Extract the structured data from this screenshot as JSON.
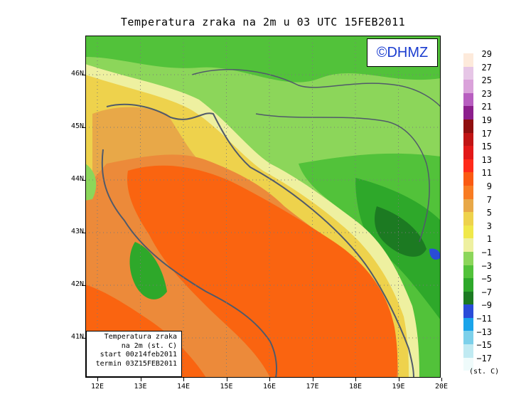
{
  "title": "Temperatura zraka na 2m u 03 UTC 15FEB2011",
  "logo": "©DHMZ",
  "map": {
    "lat_labels": [
      "46N",
      "45N",
      "44N",
      "43N",
      "42N",
      "41N"
    ],
    "lon_labels": [
      "12E",
      "13E",
      "14E",
      "15E",
      "16E",
      "17E",
      "18E",
      "19E",
      "20E"
    ],
    "colors": {
      "sea_warm": "#fa6410",
      "coast_orange": "#ec8a3a",
      "amber": "#e8a848",
      "yellow": "#eed24c",
      "pale_yellow": "#eef0a0",
      "light_green": "#8cd65a",
      "green": "#52c23a",
      "mid_green": "#2ea82a",
      "dark_green": "#1c7a22",
      "blue": "#2a4cd8",
      "coast_line": "#505a6a"
    }
  },
  "infobox": {
    "line1": "Temperatura zraka",
    "line2": "na 2m (st. C)",
    "line3": "start 00z14feb2011",
    "line4": "termin 03Z15FEB2011"
  },
  "legend": {
    "labels": [
      "29",
      "27",
      "25",
      "23",
      "21",
      "19",
      "17",
      "15",
      "13",
      "11",
      "9",
      "7",
      "5",
      "3",
      "1",
      "−1",
      "−3",
      "−5",
      "−7",
      "−9",
      "−11",
      "−13",
      "−15",
      "−17"
    ],
    "colors": [
      "#fdeadb",
      "#e6c6e6",
      "#daa2da",
      "#b85ec0",
      "#8c1f8c",
      "#8f0f0f",
      "#c01414",
      "#e21818",
      "#ff2a1a",
      "#fa5a12",
      "#f87c22",
      "#e8a848",
      "#eed24c",
      "#f0e84a",
      "#eef0a0",
      "#8cd65a",
      "#52c23a",
      "#2ea82a",
      "#1c7a22",
      "#2a4cd8",
      "#1aa4ea",
      "#7cd0ea",
      "#c0eaf2",
      "#effbfb"
    ],
    "units": "(st. C)"
  }
}
